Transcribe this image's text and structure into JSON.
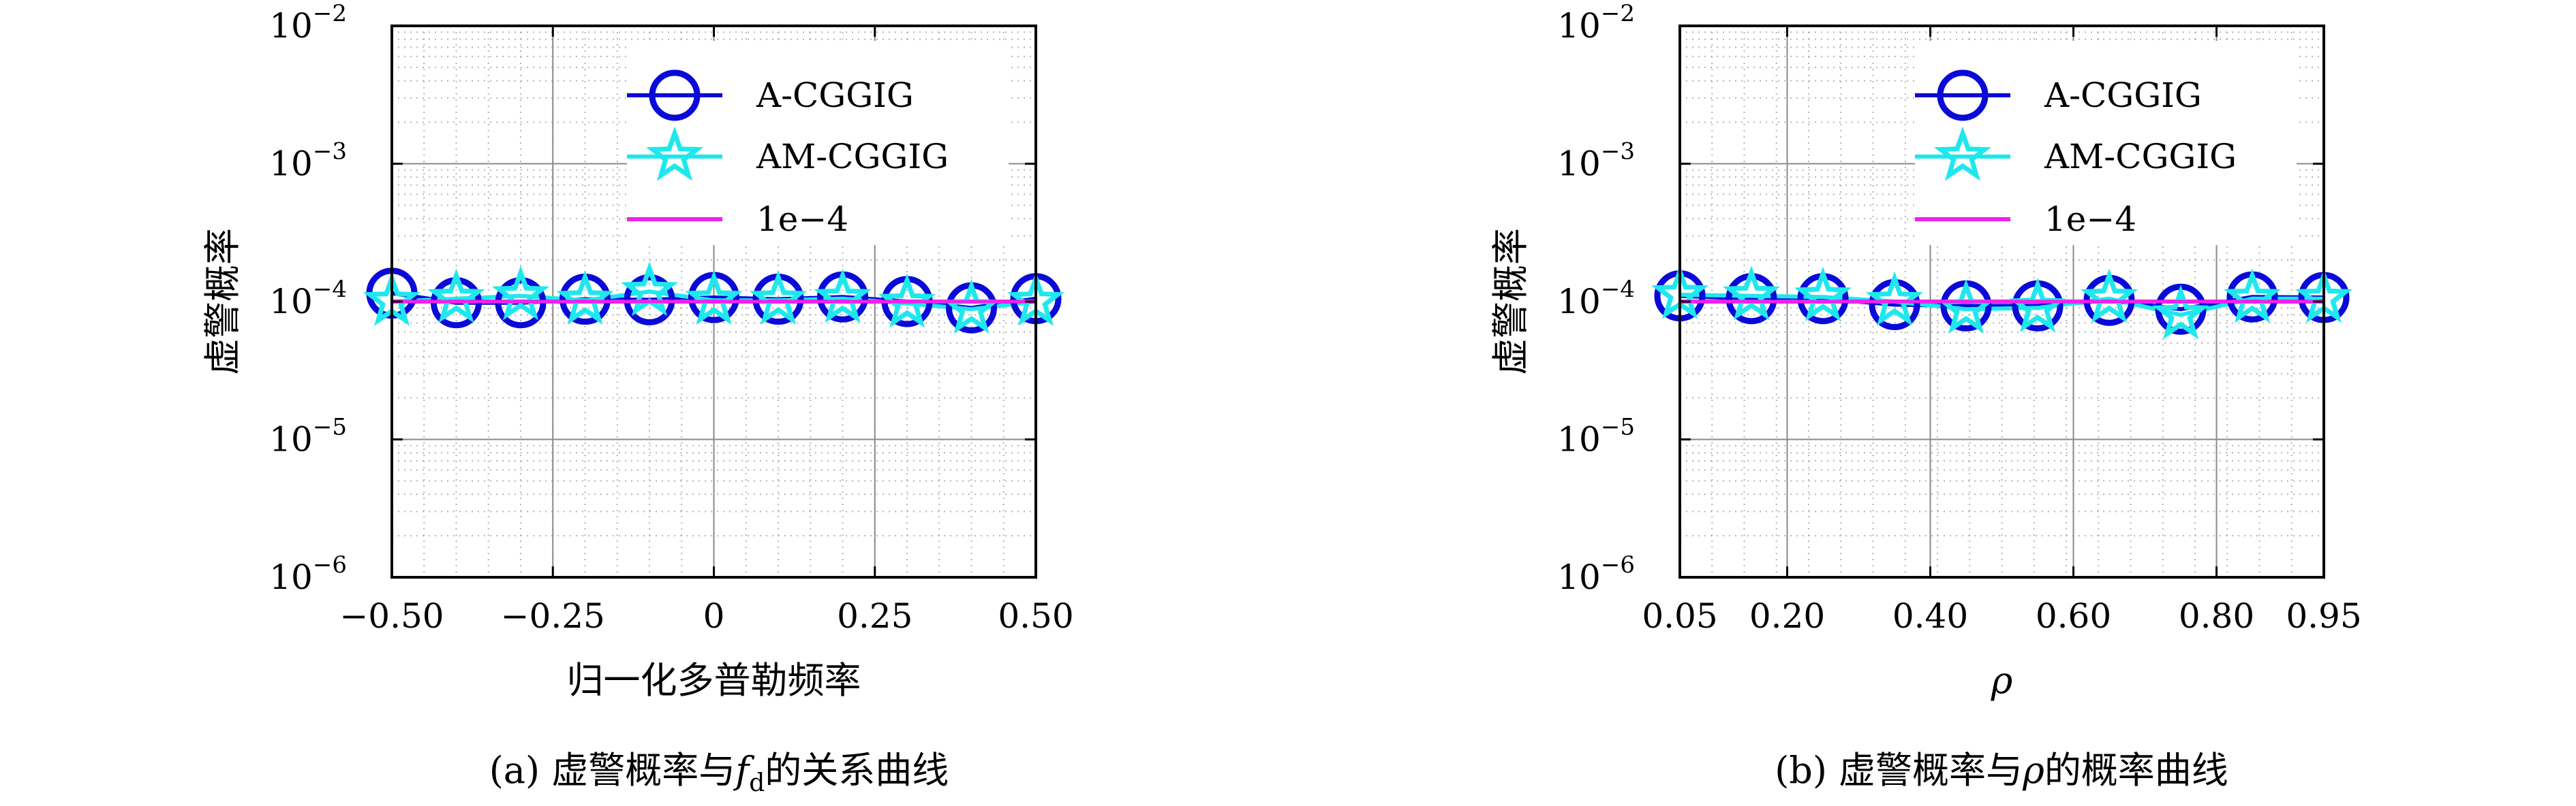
{
  "colors": {
    "a_cggig": "#0a0ad8",
    "am_cggig": "#1ee8ee",
    "ref_1e4": "#ee22ee",
    "grid_major": "#8a8a8a",
    "grid_minor": "#b5b5b5"
  },
  "chart_data": [
    {
      "type": "line",
      "caption": "(a) 虚警概率与$f_d$的关系曲线",
      "caption_parts": {
        "prefix": "(a) 虚警概率与",
        "var": "f",
        "sub": "d",
        "suffix": "的关系曲线"
      },
      "xlabel": "归一化多普勒频率",
      "ylabel": "虚警概率",
      "yscale": "log",
      "ylim": [
        1e-06,
        0.01
      ],
      "xlim": [
        -0.5,
        0.5
      ],
      "x_tick_values": [
        -0.5,
        -0.25,
        0,
        0.25,
        0.5
      ],
      "x_tick_labels": [
        "−0.50",
        "−0.25",
        "0",
        "0.25",
        "0.50"
      ],
      "x_major_grid": [
        -0.25,
        0,
        0.25
      ],
      "y_tick_exponents": [
        -2,
        -3,
        -4,
        -5,
        -6
      ],
      "y_tick_base": "10",
      "grid": true,
      "legend_position": "top-right",
      "x": [
        -0.5,
        -0.4,
        -0.3,
        -0.2,
        -0.1,
        0.0,
        0.1,
        0.2,
        0.3,
        0.4,
        0.5
      ],
      "series": [
        {
          "name": "A-CGGIG",
          "marker": "circle",
          "values": [
            0.000115,
            9.8e-05,
            9.8e-05,
            0.000104,
            0.000103,
            0.000107,
            0.000104,
            0.000108,
            0.0001,
            9e-05,
            0.000105
          ]
        },
        {
          "name": "AM-CGGIG",
          "marker": "star",
          "values": [
            0.0001,
            0.000105,
            0.00011,
            0.000102,
            0.000118,
            0.000102,
            0.000102,
            0.000105,
            9.7e-05,
            8.8e-05,
            0.0001
          ]
        },
        {
          "name": "1e−4",
          "marker": "none",
          "values": [
            0.0001,
            0.0001,
            0.0001,
            0.0001,
            0.0001,
            0.0001,
            0.0001,
            0.0001,
            0.0001,
            0.0001,
            0.0001
          ]
        }
      ]
    },
    {
      "type": "line",
      "caption": "(b) 虚警概率与$\\rho$的概率曲线",
      "caption_parts": {
        "prefix": "(b) 虚警概率与",
        "var": "ρ",
        "sub": "",
        "suffix": "的概率曲线"
      },
      "xlabel": "ρ",
      "ylabel": "虚警概率",
      "yscale": "log",
      "ylim": [
        1e-06,
        0.01
      ],
      "xlim": [
        0.05,
        0.95
      ],
      "x_tick_values": [
        0.05,
        0.2,
        0.4,
        0.6,
        0.8,
        0.95
      ],
      "x_tick_labels": [
        "0.05",
        "0.20",
        "0.40",
        "0.60",
        "0.80",
        "0.95"
      ],
      "x_major_grid": [
        0.2,
        0.4,
        0.6,
        0.8
      ],
      "y_tick_exponents": [
        -2,
        -3,
        -4,
        -5,
        -6
      ],
      "y_tick_base": "10",
      "grid": true,
      "legend_position": "top-right",
      "x": [
        0.05,
        0.15,
        0.25,
        0.35,
        0.45,
        0.55,
        0.65,
        0.75,
        0.85,
        0.95
      ],
      "series": [
        {
          "name": "A-CGGIG",
          "marker": "circle",
          "values": [
            0.00011,
            0.000105,
            0.000105,
            9.5e-05,
            9.3e-05,
            9.3e-05,
            0.000102,
            8.8e-05,
            0.000108,
            0.000107
          ]
        },
        {
          "name": "AM-CGGIG",
          "marker": "star",
          "values": [
            0.000112,
            0.00011,
            0.000108,
            0.0001,
            8.8e-05,
            9e-05,
            0.000105,
            8e-05,
            0.000105,
            0.000105
          ]
        },
        {
          "name": "1e−4",
          "marker": "none",
          "values": [
            0.0001,
            0.0001,
            0.0001,
            0.0001,
            0.0001,
            0.0001,
            0.0001,
            0.0001,
            0.0001,
            0.0001
          ]
        }
      ]
    }
  ]
}
